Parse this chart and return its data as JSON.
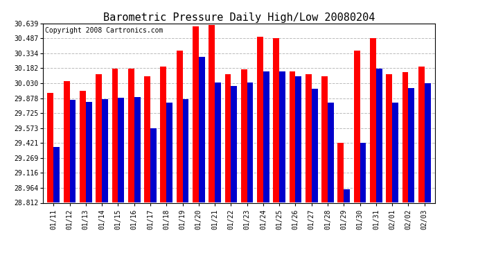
{
  "title": "Barometric Pressure Daily High/Low 20080204",
  "copyright": "Copyright 2008 Cartronics.com",
  "dates": [
    "01/11",
    "01/12",
    "01/13",
    "01/14",
    "01/15",
    "01/16",
    "01/17",
    "01/18",
    "01/19",
    "01/20",
    "01/21",
    "01/22",
    "01/23",
    "01/24",
    "01/25",
    "01/26",
    "01/27",
    "01/28",
    "01/29",
    "01/30",
    "01/31",
    "02/01",
    "02/02",
    "02/03"
  ],
  "highs": [
    29.93,
    30.05,
    29.95,
    30.12,
    30.18,
    30.18,
    30.1,
    30.2,
    30.36,
    30.61,
    30.62,
    30.12,
    30.17,
    30.5,
    30.49,
    30.15,
    30.12,
    30.1,
    29.42,
    30.36,
    30.49,
    30.12,
    30.14,
    30.2
  ],
  "lows": [
    29.38,
    29.86,
    29.84,
    29.87,
    29.88,
    29.89,
    29.57,
    29.83,
    29.87,
    30.3,
    30.04,
    30.0,
    30.04,
    30.15,
    30.15,
    30.1,
    29.97,
    29.83,
    28.95,
    29.42,
    30.18,
    29.83,
    29.98,
    30.03
  ],
  "ylim_min": 28.812,
  "ylim_max": 30.639,
  "yticks": [
    28.812,
    28.964,
    29.116,
    29.269,
    29.421,
    29.573,
    29.725,
    29.878,
    30.03,
    30.182,
    30.334,
    30.487,
    30.639
  ],
  "high_color": "#ff0000",
  "low_color": "#0000cc",
  "bg_color": "#ffffff",
  "grid_color": "#bbbbbb",
  "title_fontsize": 11,
  "copyright_fontsize": 7,
  "bar_width": 0.38
}
